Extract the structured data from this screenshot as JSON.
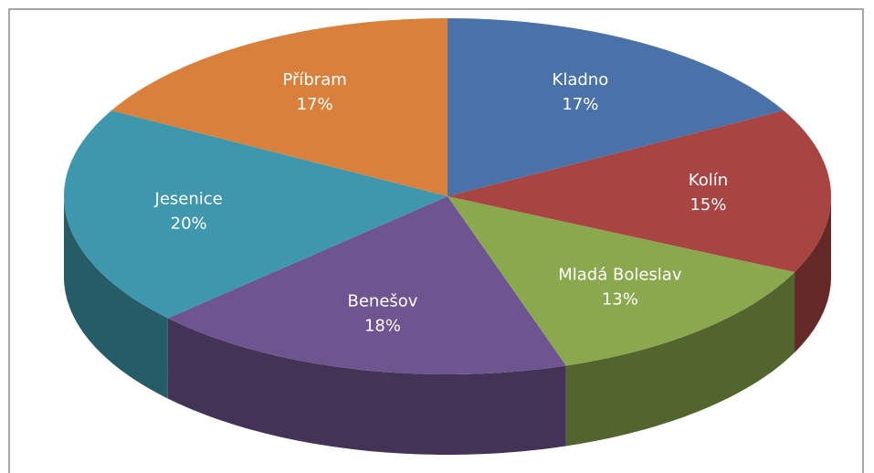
{
  "chart_data": {
    "type": "pie3d",
    "categories": [
      "Kladno",
      "Kolín",
      "Mladá Boleslav",
      "Benešov",
      "Jesenice",
      "Příbram"
    ],
    "values": [
      17,
      15,
      13,
      18,
      20,
      17
    ],
    "value_labels": [
      "17%",
      "15%",
      "13%",
      "18%",
      "20%",
      "17%"
    ],
    "colors": [
      "#4a72a8",
      "#a84442",
      "#8aa94f",
      "#6f5590",
      "#3f97ad",
      "#d9813c"
    ]
  }
}
